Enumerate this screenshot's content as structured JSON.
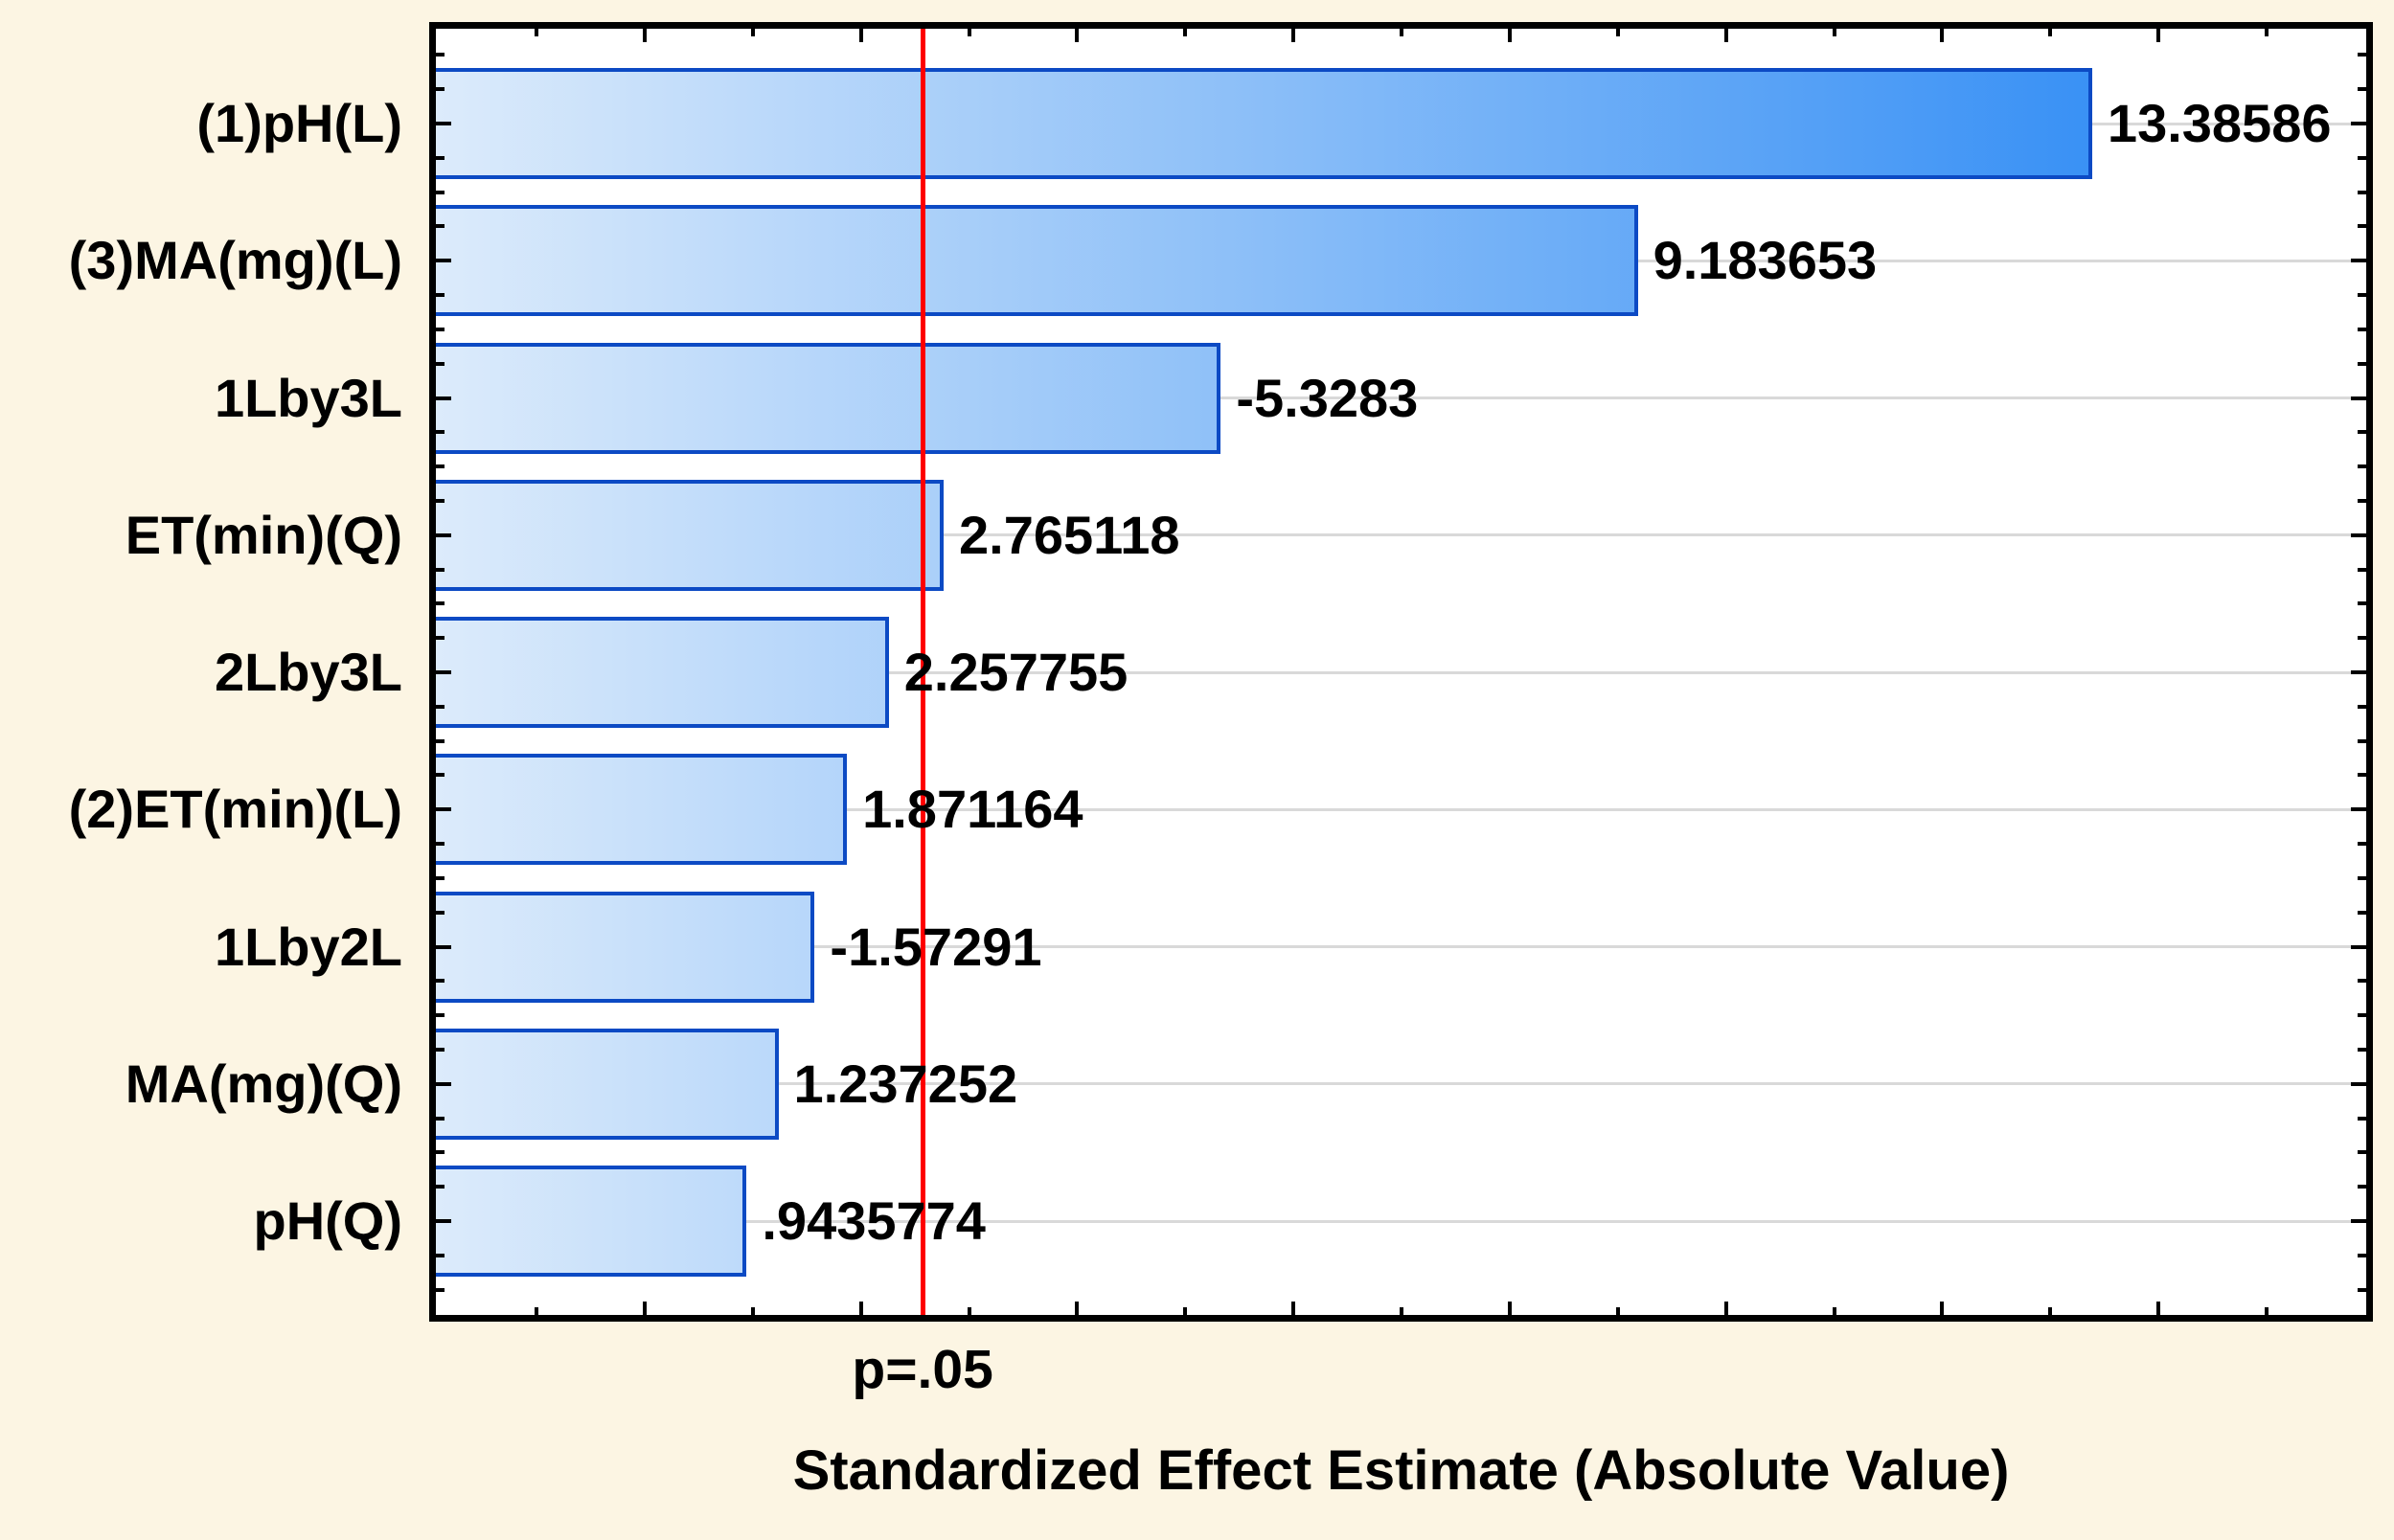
{
  "chart_data": {
    "type": "bar",
    "orientation": "horizontal",
    "title": "",
    "xlabel": "Standardized Effect Estimate (Absolute Value)",
    "ylabel": "",
    "x_tick_labels": "none (unlabeled ticks)",
    "xlim": [
      -1.93,
      15.92
    ],
    "x_major_tick_step": 2,
    "x_minor_tick_step": 1,
    "grid": "horizontal gray line at each bar center",
    "legend_position": "none",
    "reference_line": {
      "label": "p=.05",
      "value": 2.571
    },
    "categories": [
      "(1)pH(L)",
      "(3)MA(mg)(L)",
      "1Lby3L",
      "ET(min)(Q)",
      "2Lby3L",
      "(2)ET(min)(L)",
      "1Lby2L",
      "MA(mg)(Q)",
      "pH(Q)"
    ],
    "values": [
      13.38586,
      9.183653,
      -5.3283,
      2.765118,
      2.257755,
      1.871164,
      -1.57291,
      1.237252,
      0.9435774
    ],
    "value_labels": [
      "13.38586",
      "9.183653",
      "-5.3283",
      "2.765118",
      "2.257755",
      "1.871164",
      "-1.57291",
      "1.237252",
      ".9435774"
    ],
    "colors": {
      "page_background": "#FCF5E3",
      "plot_background": "#FFFFFF",
      "bar_gradient_start": "#DCEBFB",
      "bar_gradient_end": "#1E82F4",
      "bar_border": "#0C4AC4",
      "gridline": "#D9D9D9",
      "reference_line": "#FE0000",
      "frame_and_ticks": "#000000",
      "text": "#000000"
    }
  }
}
